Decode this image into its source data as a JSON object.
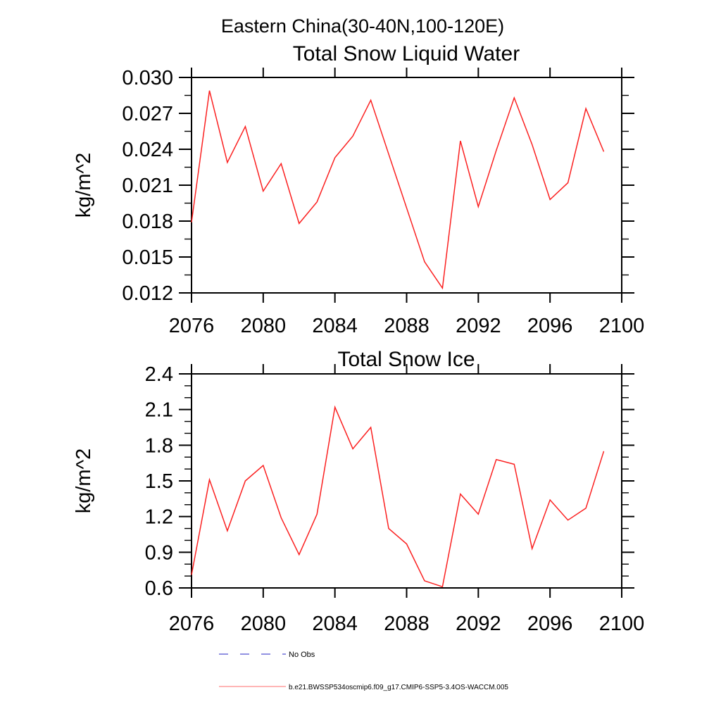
{
  "figure_title": "Eastern China(30-40N,100-120E)",
  "colors": {
    "series_line": "#fb2020",
    "axis": "#000000",
    "no_obs_line": "#6f6fd8",
    "legend_series_line": "#ff8a8a"
  },
  "legend": {
    "entries": [
      {
        "label": "No Obs",
        "line_style": "dashed",
        "color": "#6f6fd8"
      },
      {
        "label": "b.e21.BWSSP534oscmip6.f09_g17.CMIP6-SSP5-3.4OS-WACCM.005",
        "line_style": "solid",
        "color": "#ff8a8a"
      }
    ]
  },
  "chart_data": [
    {
      "type": "line",
      "title": "Total Snow Liquid Water",
      "ylabel": "kg/m^2",
      "grid": false,
      "legend_position": "none",
      "xlim": [
        2076,
        2100
      ],
      "ylim": [
        0.012,
        0.03
      ],
      "y_minor_step": 0.0015,
      "x_ticks": [
        2076,
        2080,
        2084,
        2088,
        2092,
        2096,
        2100
      ],
      "x_tick_labels": [
        "2076",
        "2080",
        "2084",
        "2088",
        "2092",
        "2096",
        "2100"
      ],
      "y_ticks": [
        0.012,
        0.015,
        0.018,
        0.021,
        0.024,
        0.027,
        0.03
      ],
      "y_tick_labels": [
        "0.012",
        "0.015",
        "0.018",
        "0.021",
        "0.024",
        "0.027",
        "0.030"
      ],
      "x": [
        2076,
        2077,
        2078,
        2079,
        2080,
        2081,
        2082,
        2083,
        2084,
        2085,
        2086,
        2087,
        2088,
        2089,
        2090,
        2091,
        2092,
        2093,
        2094,
        2095,
        2096,
        2097,
        2098,
        2099
      ],
      "values": [
        0.0179,
        0.0289,
        0.0229,
        0.0259,
        0.0205,
        0.0228,
        0.0178,
        0.0196,
        0.0233,
        0.0251,
        0.0281,
        0.0236,
        0.0191,
        0.0146,
        0.0124,
        0.0247,
        0.0192,
        0.0239,
        0.0283,
        0.0244,
        0.0198,
        0.0212,
        0.0274,
        0.0238
      ]
    },
    {
      "type": "line",
      "title": "Total Snow Ice",
      "ylabel": "kg/m^2",
      "grid": false,
      "legend_position": "none",
      "xlim": [
        2076,
        2100
      ],
      "ylim": [
        0.6,
        2.4
      ],
      "y_minor_step": 0.1,
      "x_ticks": [
        2076,
        2080,
        2084,
        2088,
        2092,
        2096,
        2100
      ],
      "x_tick_labels": [
        "2076",
        "2080",
        "2084",
        "2088",
        "2092",
        "2096",
        "2100"
      ],
      "y_ticks": [
        0.6,
        0.9,
        1.2,
        1.5,
        1.8,
        2.1,
        2.4
      ],
      "y_tick_labels": [
        "0.6",
        "0.9",
        "1.2",
        "1.5",
        "1.8",
        "2.1",
        "2.4"
      ],
      "x": [
        2076,
        2077,
        2078,
        2079,
        2080,
        2081,
        2082,
        2083,
        2084,
        2085,
        2086,
        2087,
        2088,
        2089,
        2090,
        2091,
        2092,
        2093,
        2094,
        2095,
        2096,
        2097,
        2098,
        2099
      ],
      "values": [
        0.71,
        1.51,
        1.08,
        1.5,
        1.63,
        1.19,
        0.88,
        1.22,
        2.12,
        1.77,
        1.95,
        1.1,
        0.97,
        0.66,
        0.61,
        1.39,
        1.22,
        1.68,
        1.64,
        0.93,
        1.34,
        1.17,
        1.27,
        1.75
      ]
    }
  ]
}
